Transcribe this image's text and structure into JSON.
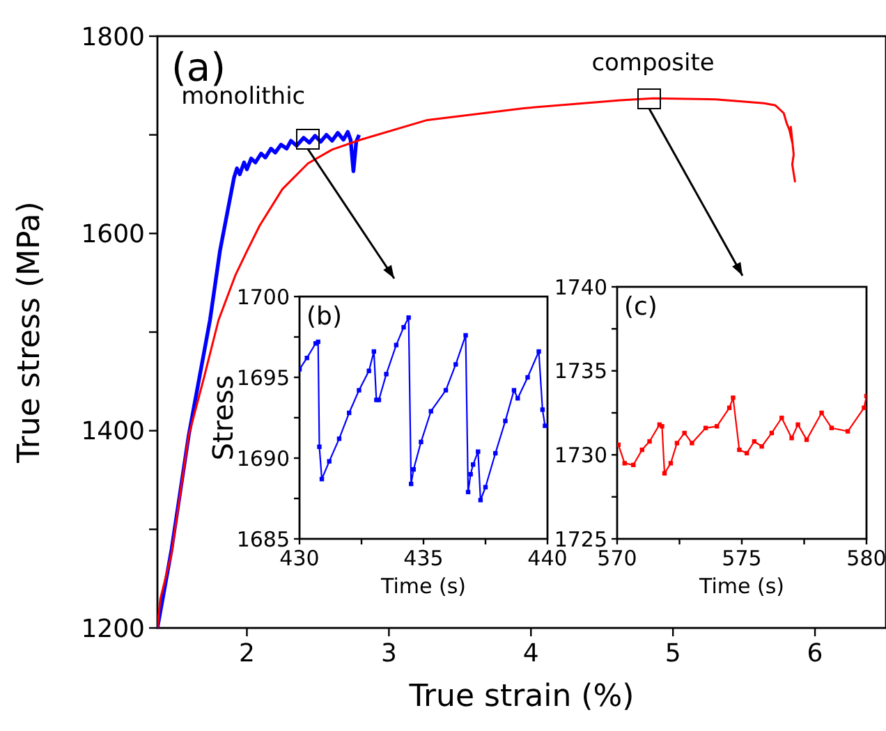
{
  "chart_data": [
    {
      "type": "line",
      "xlabel": "True strain (%)",
      "ylabel": "True stress (MPa)",
      "xlim": [
        1.37,
        6.5
      ],
      "ylim": [
        1200,
        1800
      ],
      "xticks": [
        2,
        3,
        4,
        5,
        6
      ],
      "yticks": [
        1200,
        {
          "value": 1300,
          "label": null
        },
        1400,
        {
          "value": 1500,
          "label": null
        },
        1600,
        {
          "value": 1700,
          "label": null
        },
        1800
      ],
      "grid": false,
      "marker": "none",
      "line_style": "solid",
      "annotations": [
        "(a)"
      ],
      "series": [
        {
          "name": "monolithic",
          "color": "#0000ff",
          "x": [
            1.37,
            1.47,
            1.59,
            1.74,
            1.81,
            1.91,
            1.93,
            1.95,
            1.98,
            2.0,
            2.03,
            2.06,
            2.1,
            2.13,
            2.17,
            2.2,
            2.24,
            2.28,
            2.31,
            2.35,
            2.4,
            2.44,
            2.48,
            2.52,
            2.56,
            2.6,
            2.64,
            2.68,
            2.71,
            2.73,
            2.75,
            2.77,
            2.79
          ],
          "values": [
            1200,
            1280,
            1395,
            1512,
            1582,
            1657,
            1666,
            1660,
            1672,
            1665,
            1676,
            1672,
            1681,
            1677,
            1686,
            1682,
            1690,
            1686,
            1694,
            1689,
            1697,
            1692,
            1699,
            1693,
            1700,
            1694,
            1702,
            1695,
            1703,
            1695,
            1663,
            1693,
            1700
          ]
        },
        {
          "name": "composite",
          "color": "#ff0000",
          "x": [
            1.37,
            1.39,
            1.47,
            1.59,
            1.7,
            1.8,
            1.92,
            2.0,
            2.09,
            2.25,
            2.43,
            2.6,
            2.8,
            3.27,
            3.95,
            4.63,
            4.86,
            5.3,
            5.64,
            5.72,
            5.78,
            5.8,
            5.82,
            5.84,
            5.83,
            5.85,
            5.84,
            5.86
          ],
          "values": [
            1200,
            1229,
            1276,
            1395,
            1455,
            1512,
            1558,
            1582,
            1608,
            1645,
            1671,
            1685,
            1695,
            1715,
            1727,
            1735,
            1737,
            1736,
            1732,
            1730,
            1722,
            1712,
            1705,
            1692,
            1708,
            1680,
            1670,
            1652
          ]
        }
      ]
    },
    {
      "type": "line",
      "xlabel": "Time (s)",
      "ylabel": "Stress",
      "xlim": [
        430,
        440
      ],
      "ylim": [
        1685,
        1700
      ],
      "xticks": [
        430,
        {
          "value": 432.5,
          "label": null
        },
        435,
        {
          "value": 437.5,
          "label": null
        },
        440
      ],
      "yticks": [
        1685,
        {
          "value": 1687.5,
          "label": null
        },
        1690,
        {
          "value": 1692.5,
          "label": null
        },
        1695,
        {
          "value": 1697.5,
          "label": null
        },
        1700
      ],
      "grid": false,
      "marker": "square",
      "line_style": "solid",
      "annotations": [
        "(b)"
      ],
      "series": [
        {
          "color": "#0000ff",
          "x": [
            430.0,
            430.3,
            430.65,
            430.75,
            430.8,
            430.9,
            431.2,
            431.6,
            432.0,
            432.4,
            432.8,
            433.0,
            433.1,
            433.2,
            433.5,
            433.9,
            434.2,
            434.4,
            434.5,
            434.6,
            434.9,
            435.3,
            435.9,
            436.3,
            436.7,
            436.8,
            436.9,
            437.0,
            437.2,
            437.3,
            437.5,
            437.9,
            438.3,
            438.65,
            438.8,
            439.2,
            439.65,
            439.8,
            439.9
          ],
          "values": [
            1695.5,
            1696.2,
            1697.1,
            1697.2,
            1690.7,
            1688.7,
            1689.8,
            1691.2,
            1692.8,
            1694.2,
            1695.4,
            1696.6,
            1693.6,
            1693.6,
            1695.2,
            1697.0,
            1698.1,
            1698.7,
            1688.4,
            1689.3,
            1691.0,
            1692.9,
            1694.2,
            1695.8,
            1697.6,
            1687.9,
            1689.0,
            1689.6,
            1690.4,
            1687.4,
            1688.2,
            1690.3,
            1692.3,
            1694.2,
            1693.7,
            1695.0,
            1696.6,
            1693.0,
            1692.0
          ]
        }
      ]
    },
    {
      "type": "line",
      "xlabel": "Time (s)",
      "xlim": [
        570,
        580
      ],
      "ylim": [
        1725,
        1740
      ],
      "xticks": [
        570,
        {
          "value": 572.5,
          "label": null
        },
        575,
        {
          "value": 577.5,
          "label": null
        },
        580
      ],
      "yticks": [
        1725,
        {
          "value": 1727.5,
          "label": null
        },
        1730,
        {
          "value": 1732.5,
          "label": null
        },
        1735,
        {
          "value": 1737.5,
          "label": null
        },
        1740
      ],
      "grid": false,
      "marker": "square",
      "line_style": "solid",
      "annotations": [
        "(c)"
      ],
      "series": [
        {
          "color": "#ff0000",
          "x": [
            570.05,
            570.3,
            570.65,
            571.0,
            571.3,
            571.7,
            571.8,
            571.9,
            572.15,
            572.4,
            572.7,
            573.0,
            573.55,
            574.0,
            574.5,
            574.65,
            574.9,
            575.2,
            575.5,
            575.8,
            576.2,
            576.6,
            577.0,
            577.25,
            577.6,
            578.2,
            578.6,
            579.25,
            579.9,
            580.0
          ],
          "values": [
            1730.6,
            1729.5,
            1729.4,
            1730.3,
            1730.8,
            1731.8,
            1731.7,
            1728.9,
            1729.5,
            1730.7,
            1731.3,
            1730.7,
            1731.6,
            1731.7,
            1732.8,
            1733.4,
            1730.3,
            1730.1,
            1730.8,
            1730.5,
            1731.3,
            1732.2,
            1731.0,
            1731.8,
            1730.9,
            1732.5,
            1731.6,
            1731.4,
            1732.8,
            1733.5
          ]
        }
      ]
    }
  ]
}
